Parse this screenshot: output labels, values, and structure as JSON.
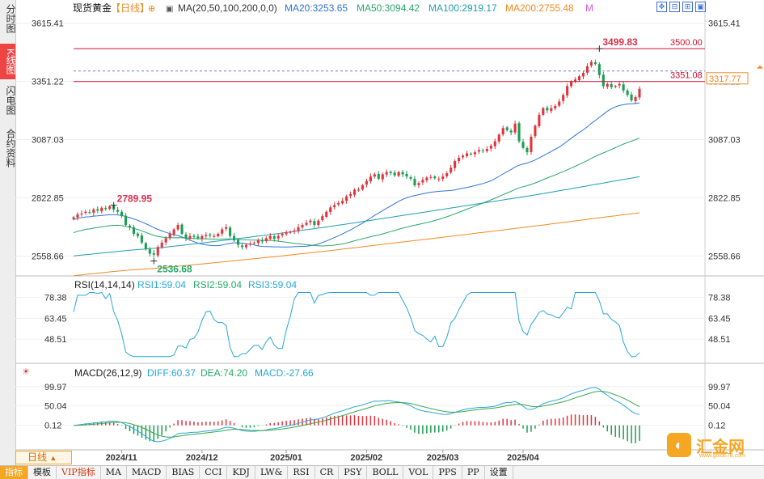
{
  "sidebar": {
    "tabs": [
      {
        "label": "分时图",
        "active": false
      },
      {
        "label": "K线图",
        "active": true
      },
      {
        "label": "闪电图",
        "active": false
      },
      {
        "label": "合约资料",
        "active": false
      }
    ]
  },
  "header": {
    "instrument": "现货黄金",
    "period": "【日线】",
    "ma_params": "MA(20,50,100,200,0,0)",
    "ma20": "MA20:3253.65",
    "ma50": "MA50:3094.42",
    "ma100": "MA100:2919.17",
    "ma200": "MA200:2755.48",
    "m_label": "M"
  },
  "colors": {
    "up": "#e0343c",
    "down": "#1a9e50",
    "ma20": "#2f73d8",
    "ma50": "#27a86a",
    "ma100": "#1e9fb0",
    "ma200": "#f08a24",
    "rsi": "#2aa6d6",
    "diff": "#2aa6d6",
    "dea": "#3aa84a"
  },
  "price_axis": {
    "ticks": [
      "3615.41",
      "3351.22",
      "3087.03",
      "2822.85",
      "2558.66"
    ],
    "ymin": 2480,
    "ymax": 3640
  },
  "price_lines": [
    {
      "value": 3500.0,
      "label": "3500.00"
    },
    {
      "value": 3351.08,
      "label": "3351.08"
    }
  ],
  "current_price": {
    "value": 3317.77,
    "label": "3317.77"
  },
  "annotations": [
    {
      "label": "3499.83",
      "value": 3499.83,
      "index": 131
    },
    {
      "label": "2789.95",
      "value": 2789.95,
      "index": 10
    },
    {
      "label": "2536.68",
      "value": 2536.68,
      "index": 20
    }
  ],
  "x_labels": [
    {
      "label": "2024/11",
      "index": 12
    },
    {
      "label": "2024/12",
      "index": 32
    },
    {
      "label": "2025/01",
      "index": 53
    },
    {
      "label": "2025/02",
      "index": 73
    },
    {
      "label": "2025/03",
      "index": 92
    },
    {
      "label": "2025/04",
      "index": 112
    }
  ],
  "rsi": {
    "title": "RSI(14,14,14)",
    "rsi1": "RSI1:59.04",
    "rsi2": "RSI2:59.04",
    "rsi3": "RSI3:59.04",
    "ticks": [
      "78.38",
      "63.45",
      "48.51"
    ],
    "ymin": 33,
    "ymax": 84
  },
  "macd": {
    "title": "MACD(26,12,9)",
    "diff": "DIFF:60.37",
    "dea": "DEA:74.20",
    "macd": "MACD:-27.66",
    "ticks": [
      "99.97",
      "50.04",
      "0.12"
    ],
    "ymin": -55,
    "ymax": 112
  },
  "period_selector": "日线",
  "bottom_tabs": [
    "指标",
    "模板",
    "VIP指标",
    "MA",
    "MACD",
    "BIAS",
    "CCI",
    "KDJ",
    "LW&",
    "RSI",
    "CR",
    "PSY",
    "BOLL",
    "VOL",
    "PPS",
    "PP",
    "设置"
  ],
  "logo": {
    "text": "汇金网",
    "sub": "www.gold678.com"
  },
  "chart_data": {
    "type": "candlestick",
    "closes": [
      2735,
      2748,
      2752,
      2760,
      2756,
      2770,
      2765,
      2778,
      2772,
      2785,
      2770,
      2760,
      2740,
      2700,
      2690,
      2660,
      2650,
      2620,
      2590,
      2570,
      2565,
      2600,
      2620,
      2640,
      2660,
      2680,
      2700,
      2660,
      2640,
      2650,
      2645,
      2640,
      2650,
      2655,
      2652,
      2650,
      2660,
      2680,
      2690,
      2650,
      2630,
      2610,
      2600,
      2610,
      2615,
      2620,
      2630,
      2625,
      2640,
      2650,
      2638,
      2650,
      2660,
      2665,
      2670,
      2675,
      2690,
      2700,
      2710,
      2720,
      2700,
      2720,
      2740,
      2760,
      2780,
      2790,
      2800,
      2810,
      2830,
      2840,
      2860,
      2860,
      2880,
      2900,
      2920,
      2930,
      2910,
      2930,
      2940,
      2935,
      2925,
      2940,
      2930,
      2920,
      2910,
      2880,
      2890,
      2905,
      2915,
      2918,
      2912,
      2910,
      2920,
      2935,
      2960,
      2990,
      3005,
      3015,
      3025,
      3020,
      3030,
      3040,
      3035,
      3045,
      3060,
      3080,
      3110,
      3140,
      3130,
      3120,
      3160,
      3080,
      3050,
      3030,
      3100,
      3150,
      3200,
      3230,
      3220,
      3230,
      3240,
      3260,
      3290,
      3330,
      3350,
      3360,
      3375,
      3390,
      3420,
      3440,
      3430,
      3380,
      3330,
      3340,
      3325,
      3330,
      3340,
      3310,
      3290,
      3265,
      3280,
      3317.77
    ]
  }
}
